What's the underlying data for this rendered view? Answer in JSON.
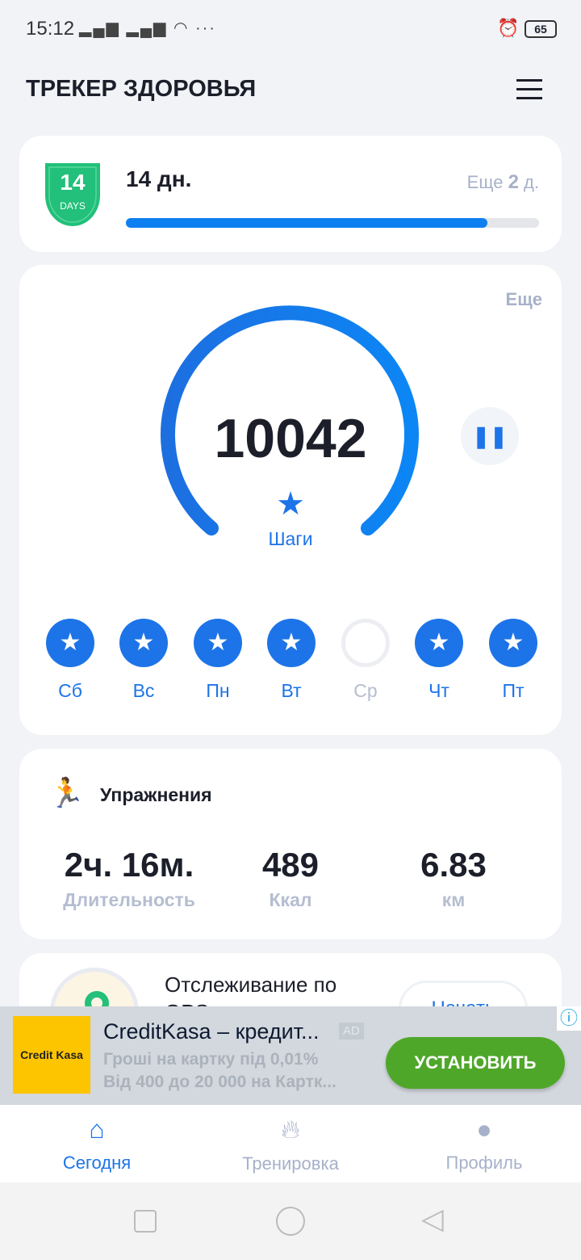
{
  "status": {
    "time": "15:12",
    "battery": "65"
  },
  "header": {
    "title": "ТРЕКЕР ЗДОРОВЬЯ"
  },
  "streak": {
    "badge_number": "14",
    "badge_unit": "DAYS",
    "days": "14 дн.",
    "remaining_prefix": "Еще",
    "remaining_value": "2",
    "remaining_suffix": "д.",
    "progress": 0.875
  },
  "steps": {
    "more": "Еще",
    "count": "10042",
    "label": "Шаги",
    "goal_progress": 1.0,
    "days": [
      {
        "label": "Сб",
        "done": true
      },
      {
        "label": "Вс",
        "done": true
      },
      {
        "label": "Пн",
        "done": true
      },
      {
        "label": "Вт",
        "done": true
      },
      {
        "label": "Ср",
        "done": false
      },
      {
        "label": "Чт",
        "done": true
      },
      {
        "label": "Пт",
        "done": true
      }
    ]
  },
  "exercise": {
    "title": "Упражнения",
    "stats": [
      {
        "value": "2ч. 16м.",
        "label": "Длительность"
      },
      {
        "value": "489",
        "label": "Ккал"
      },
      {
        "value": "6.83",
        "label": "км"
      }
    ]
  },
  "gps": {
    "title": "Отслеживание по GPS",
    "button": "Начать"
  },
  "ad": {
    "logo": "Credit Kasa",
    "title": "CreditKasa – кредит...",
    "badge": "AD",
    "line1": "Гроші на картку під 0,01%",
    "line2": "Від 400 до 20 000 на Картк...",
    "cta": "УСТАНОВИТЬ"
  },
  "nav": [
    {
      "label": "Сегодня",
      "active": true
    },
    {
      "label": "Тренировка",
      "active": false
    },
    {
      "label": "Профиль",
      "active": false
    }
  ],
  "colors": {
    "accent": "#1d74e8",
    "green": "#22c07a",
    "ad_button": "#4fa72a"
  }
}
